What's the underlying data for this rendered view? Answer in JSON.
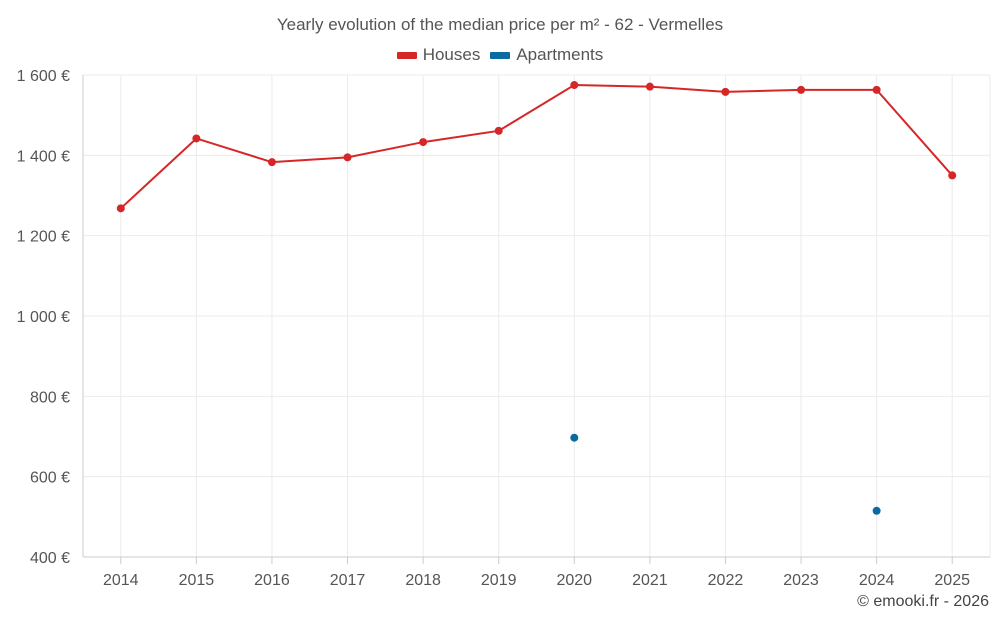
{
  "chart_data": {
    "type": "line",
    "title": "Yearly evolution of the median price per m² - 62 - Vermelles",
    "categories": [
      "2014",
      "2015",
      "2016",
      "2017",
      "2018",
      "2019",
      "2020",
      "2021",
      "2022",
      "2023",
      "2024",
      "2025"
    ],
    "ylim": [
      400,
      1600
    ],
    "yticks": [
      400,
      600,
      800,
      1000,
      1200,
      1400,
      1600
    ],
    "ytick_labels": [
      "400 €",
      "600 €",
      "800 €",
      "1 000 €",
      "1 200 €",
      "1 400 €",
      "1 600 €"
    ],
    "grid": true,
    "legend_position": "top-center",
    "series": [
      {
        "name": "Houses",
        "color": "#d62728",
        "style": "line+markers",
        "values": [
          1268,
          1442,
          1383,
          1395,
          1433,
          1461,
          1575,
          1571,
          1558,
          1563,
          1563,
          1350
        ]
      },
      {
        "name": "Apartments",
        "color": "#0b6aa2",
        "style": "markers",
        "values": [
          null,
          null,
          null,
          null,
          null,
          null,
          697,
          null,
          null,
          null,
          515,
          null
        ]
      }
    ]
  },
  "credit": "© emooki.fr - 2026"
}
